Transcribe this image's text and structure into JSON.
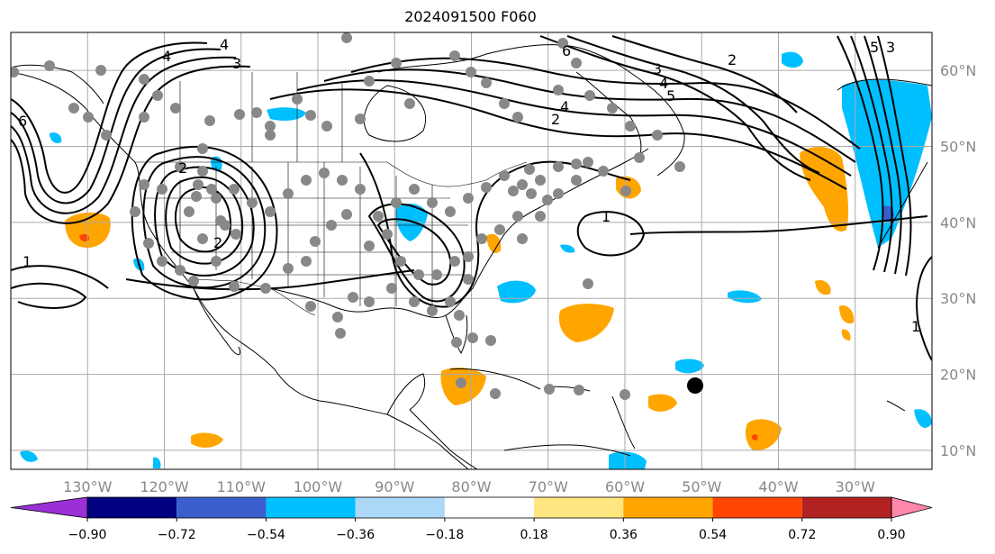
{
  "title": "2024091500 F060",
  "map": {
    "lon_range": [
      -140,
      -20
    ],
    "lat_range": [
      7.5,
      65
    ],
    "lon_ticks": [
      {
        "value": -130,
        "label": "130°W"
      },
      {
        "value": -120,
        "label": "120°W"
      },
      {
        "value": -110,
        "label": "110°W"
      },
      {
        "value": -100,
        "label": "100°W"
      },
      {
        "value": -90,
        "label": "90°W"
      },
      {
        "value": -80,
        "label": "80°W"
      },
      {
        "value": -70,
        "label": "70°W"
      },
      {
        "value": -60,
        "label": "60°W"
      },
      {
        "value": -50,
        "label": "50°W"
      },
      {
        "value": -40,
        "label": "40°W"
      },
      {
        "value": -30,
        "label": "30°W"
      }
    ],
    "lat_ticks": [
      {
        "value": 10,
        "label": "10°N"
      },
      {
        "value": 20,
        "label": "20°N"
      },
      {
        "value": 30,
        "label": "30°N"
      },
      {
        "value": 40,
        "label": "40°N"
      },
      {
        "value": 50,
        "label": "50°N"
      },
      {
        "value": 60,
        "label": "60°N"
      }
    ],
    "contour_labels": [
      "4",
      "3",
      "2",
      "1",
      "6",
      "5"
    ],
    "colors": {
      "land_line": "#000000",
      "contour": "#000000",
      "grid": "#aaaaaa",
      "station": "#888888",
      "marker": "#000000"
    }
  },
  "colorbar": {
    "colors": [
      "#9b30d9",
      "#000080",
      "#3a5fcd",
      "#00bfff",
      "#add8f8",
      "#ffffff",
      "#ffe680",
      "#ffa500",
      "#ff4500",
      "#b22222",
      "#ff88aa"
    ],
    "labels": [
      "−0.90",
      "−0.72",
      "−0.54",
      "−0.36",
      "−0.18",
      "0.18",
      "0.36",
      "0.54",
      "0.72",
      "0.90"
    ]
  }
}
